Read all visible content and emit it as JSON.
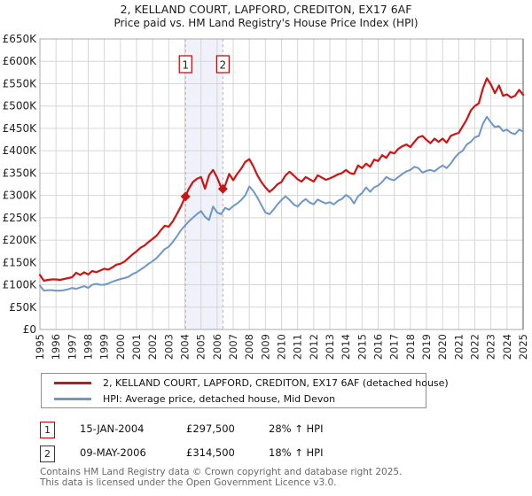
{
  "title": "2, KELLAND COURT, LAPFORD, CREDITON, EX17 6AF",
  "subtitle": "Price paid vs. HM Land Registry's House Price Index (HPI)",
  "legend": {
    "property_label": "2, KELLAND COURT, LAPFORD, CREDITON, EX17 6AF (detached house)",
    "hpi_label": "HPI: Average price, detached house, Mid Devon"
  },
  "transactions": [
    {
      "number": "1",
      "date": "15-JAN-2004",
      "price": "£297,500",
      "hpi_change": "28% ↑ HPI"
    },
    {
      "number": "2",
      "date": "09-MAY-2006",
      "price": "£314,500",
      "hpi_change": "18% ↑ HPI"
    }
  ],
  "footer": {
    "line1": "Contains HM Land Registry data © Crown copyright and database right 2025.",
    "line2": "This data is licensed under the Open Government Licence v3.0."
  },
  "chart": {
    "y_tick_labels": [
      "£0",
      "£50K",
      "£100K",
      "£150K",
      "£200K",
      "£250K",
      "£300K",
      "£350K",
      "£400K",
      "£450K",
      "£500K",
      "£550K",
      "£600K",
      "£650K"
    ],
    "x_tick_labels": [
      "1995",
      "1996",
      "1997",
      "1998",
      "1999",
      "2000",
      "2001",
      "2002",
      "2003",
      "2004",
      "2005",
      "2006",
      "2007",
      "2008",
      "2009",
      "2010",
      "2011",
      "2012",
      "2013",
      "2014",
      "2015",
      "2016",
      "2017",
      "2018",
      "2019",
      "2020",
      "2021",
      "2022",
      "2023",
      "2024",
      "2025"
    ],
    "colors": {
      "grid": "#d6d6d6",
      "border": "#a8a8a8",
      "right_spine": "#555555",
      "dashed_marker": "#ee9a9a",
      "band": "#e9eef9",
      "marker_box_border": "#c00000",
      "tick_text": "#222222"
    }
  },
  "chart_data": {
    "type": "line",
    "title": "Price paid vs. HM Land Registry's House Price Index (HPI)",
    "unit": "GBP thousands",
    "xlim": [
      1995,
      2025
    ],
    "ylim": [
      0,
      650
    ],
    "y_tick_step": 50,
    "grid": true,
    "legend_position": "bottom",
    "x": {
      "start": 1995,
      "step": 0.25
    },
    "series": [
      {
        "name": "2, KELLAND COURT, LAPFORD, CREDITON, EX17 6AF (detached house)",
        "color": "#cc1414",
        "width": 2.2,
        "values": [
          122,
          109,
          111,
          112,
          112,
          111,
          113,
          115,
          117,
          127,
          122,
          128,
          123,
          131,
          128,
          132,
          136,
          134,
          139,
          145,
          147,
          152,
          160,
          168,
          175,
          183,
          188,
          196,
          203,
          210,
          222,
          232,
          230,
          242,
          258,
          275,
          295,
          315,
          330,
          337,
          341,
          315,
          345,
          357,
          340,
          318,
          322,
          348,
          334,
          348,
          360,
          375,
          381,
          365,
          345,
          330,
          318,
          308,
          315,
          325,
          330,
          345,
          353,
          345,
          336,
          331,
          341,
          336,
          331,
          345,
          340,
          335,
          338,
          342,
          347,
          350,
          357,
          350,
          348,
          367,
          361,
          371,
          364,
          380,
          377,
          390,
          384,
          397,
          394,
          404,
          410,
          414,
          408,
          420,
          430,
          433,
          424,
          417,
          427,
          420,
          427,
          418,
          433,
          437,
          440,
          455,
          470,
          490,
          500,
          506,
          539,
          562,
          548,
          529,
          546,
          523,
          526,
          519,
          523,
          536,
          525
        ]
      },
      {
        "name": "HPI: Average price, detached house, Mid Devon",
        "color": "#6f96c8",
        "width": 2,
        "values": [
          98,
          87,
          88,
          88,
          87,
          87,
          88,
          90,
          93,
          91,
          94,
          97,
          93,
          100,
          102,
          100,
          100,
          103,
          107,
          110,
          113,
          115,
          118,
          124,
          128,
          134,
          140,
          147,
          153,
          160,
          170,
          180,
          185,
          196,
          208,
          222,
          232,
          242,
          250,
          258,
          265,
          252,
          245,
          275,
          262,
          258,
          272,
          268,
          276,
          282,
          290,
          300,
          320,
          310,
          295,
          278,
          262,
          258,
          268,
          280,
          290,
          298,
          290,
          280,
          275,
          285,
          292,
          284,
          280,
          291,
          286,
          282,
          285,
          280,
          288,
          292,
          301,
          295,
          282,
          298,
          305,
          318,
          308,
          318,
          322,
          330,
          341,
          336,
          334,
          341,
          348,
          354,
          357,
          364,
          361,
          351,
          355,
          357,
          354,
          361,
          367,
          361,
          371,
          384,
          394,
          400,
          414,
          420,
          430,
          433,
          460,
          476,
          463,
          453,
          455,
          444,
          447,
          440,
          437,
          447,
          443
        ]
      }
    ],
    "markers": [
      {
        "label": "1",
        "x": 2004.04,
        "y": 297.5
      },
      {
        "label": "2",
        "x": 2006.36,
        "y": 314.5
      }
    ],
    "band": {
      "x_start": 2004.04,
      "x_end": 2006.36
    }
  }
}
